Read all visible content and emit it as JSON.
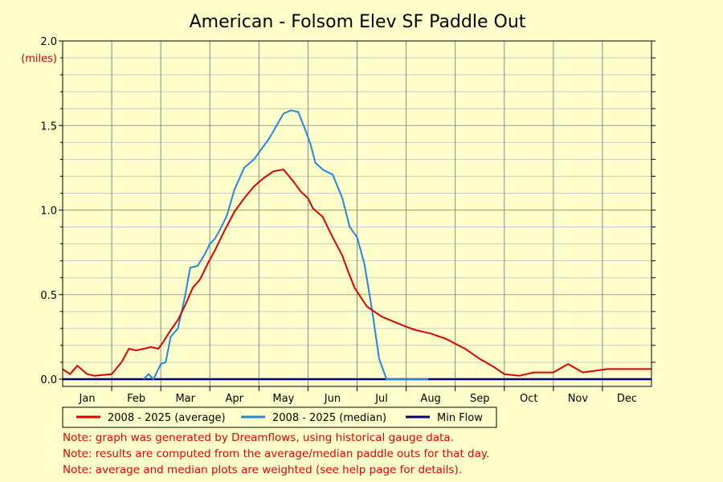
{
  "chart_data": {
    "type": "line",
    "title": "American - Folsom Elev SF Paddle Out",
    "ylabel": "(miles)",
    "xlabel": "",
    "ylim": [
      0,
      2.0
    ],
    "xlim": [
      0,
      12
    ],
    "y_ticks": [
      "2.0",
      "1.5",
      "1.0",
      "0.5",
      "0.0"
    ],
    "y_tick_values": [
      2.0,
      1.5,
      1.0,
      0.5,
      0.0
    ],
    "categories": [
      "Jan",
      "Feb",
      "Mar",
      "Apr",
      "May",
      "Jun",
      "Jul",
      "Aug",
      "Sep",
      "Oct",
      "Nov",
      "Dec"
    ],
    "grid": true,
    "legend_position": "bottom-left",
    "series": [
      {
        "name": "2008 - 2025 (average)",
        "color": "#dd0000",
        "x": [
          0,
          0.15,
          0.3,
          0.5,
          0.65,
          1.0,
          1.2,
          1.35,
          1.5,
          1.65,
          1.8,
          1.95,
          2.05,
          2.2,
          2.35,
          2.5,
          2.65,
          2.8,
          2.95,
          3.1,
          3.3,
          3.5,
          3.7,
          3.9,
          4.1,
          4.3,
          4.5,
          4.7,
          4.85,
          5.0,
          5.1,
          5.3,
          5.5,
          5.7,
          5.8,
          5.95,
          6.2,
          6.5,
          6.75,
          7.0,
          7.2,
          7.5,
          7.8,
          8.0,
          8.2,
          8.5,
          8.8,
          9.0,
          9.3,
          9.6,
          10.0,
          10.3,
          10.6,
          10.85,
          11.1,
          11.3,
          11.5,
          11.7,
          12.0
        ],
        "values": [
          0.06,
          0.03,
          0.08,
          0.03,
          0.02,
          0.03,
          0.1,
          0.18,
          0.17,
          0.18,
          0.19,
          0.18,
          0.22,
          0.29,
          0.35,
          0.44,
          0.54,
          0.59,
          0.68,
          0.76,
          0.88,
          0.99,
          1.07,
          1.14,
          1.19,
          1.23,
          1.24,
          1.17,
          1.11,
          1.07,
          1.01,
          0.96,
          0.84,
          0.73,
          0.65,
          0.54,
          0.43,
          0.37,
          0.34,
          0.31,
          0.29,
          0.27,
          0.24,
          0.21,
          0.18,
          0.12,
          0.07,
          0.03,
          0.02,
          0.04,
          0.04,
          0.09,
          0.04,
          0.05,
          0.06,
          0.06,
          0.06,
          0.06,
          0.06
        ]
      },
      {
        "name": "2008 - 2025 (median)",
        "color": "#2288dd",
        "x": [
          1.65,
          1.75,
          1.85,
          2.0,
          2.1,
          2.2,
          2.35,
          2.5,
          2.6,
          2.75,
          2.9,
          3.0,
          3.1,
          3.2,
          3.35,
          3.5,
          3.7,
          3.9,
          4.05,
          4.2,
          4.4,
          4.5,
          4.65,
          4.8,
          4.95,
          5.05,
          5.15,
          5.3,
          5.5,
          5.7,
          5.85,
          6.0,
          6.15,
          6.3,
          6.45,
          6.6,
          6.75,
          6.85,
          7.0,
          7.2,
          7.35,
          7.45
        ],
        "values": [
          0.0,
          0.03,
          0.0,
          0.09,
          0.1,
          0.25,
          0.3,
          0.5,
          0.66,
          0.67,
          0.74,
          0.8,
          0.83,
          0.88,
          0.97,
          1.12,
          1.25,
          1.3,
          1.36,
          1.42,
          1.52,
          1.57,
          1.59,
          1.58,
          1.47,
          1.39,
          1.28,
          1.24,
          1.21,
          1.07,
          0.9,
          0.84,
          0.68,
          0.42,
          0.12,
          0.0,
          0.0,
          0.0,
          0.0,
          0.0,
          0.0,
          0.0
        ]
      },
      {
        "name": "Min Flow",
        "color": "#000080",
        "x": [
          0,
          12
        ],
        "values": [
          0,
          0
        ]
      }
    ]
  },
  "notes": [
    "Note: graph was generated by Dreamflows, using historical gauge data.",
    "Note: results are computed from the average/median paddle outs for that day.",
    "Note: average and median plots are weighted (see help page for details)."
  ]
}
